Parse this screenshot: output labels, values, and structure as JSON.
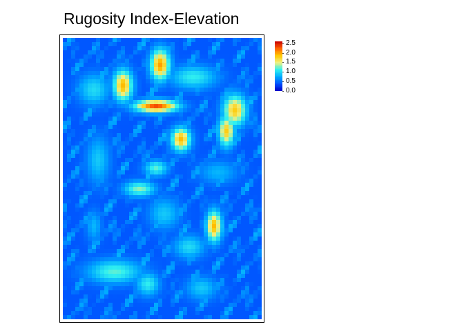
{
  "chart_data": {
    "type": "heatmap",
    "title": "Rugosity Index-Elevation",
    "xlabel": "",
    "ylabel": "",
    "value_range": [
      0.0,
      2.6
    ],
    "colorbar": {
      "position": "top-right",
      "ticks": [
        "2.5",
        "2.0",
        "1.5",
        "1.0",
        "0.5",
        "0.0"
      ],
      "tick_values": [
        2.5,
        2.0,
        1.5,
        1.0,
        0.5,
        0.0
      ],
      "colors": [
        "#0000c8",
        "#0050ff",
        "#00aaff",
        "#30f0f0",
        "#f0f080",
        "#ffc800",
        "#ff6000",
        "#c80000"
      ]
    },
    "grid_columns": 48,
    "grid_rows": 68,
    "base_value": 0.4,
    "hotspots": [
      {
        "col": 22,
        "row": 16,
        "rx": 5.5,
        "ry": 1.6,
        "value": 2.3
      },
      {
        "col": 23,
        "row": 6,
        "rx": 2.5,
        "ry": 4,
        "value": 2.0
      },
      {
        "col": 14,
        "row": 11,
        "rx": 2.5,
        "ry": 4,
        "value": 1.9
      },
      {
        "col": 28,
        "row": 24,
        "rx": 2.5,
        "ry": 3,
        "value": 1.9
      },
      {
        "col": 41,
        "row": 17,
        "rx": 3,
        "ry": 4,
        "value": 1.8
      },
      {
        "col": 39,
        "row": 22,
        "rx": 2,
        "ry": 4,
        "value": 1.8
      },
      {
        "col": 36,
        "row": 45,
        "rx": 2,
        "ry": 4,
        "value": 1.9
      },
      {
        "col": 18,
        "row": 36,
        "rx": 4,
        "ry": 2,
        "value": 1.3
      },
      {
        "col": 22,
        "row": 31,
        "rx": 3,
        "ry": 2,
        "value": 1.2
      },
      {
        "col": 12,
        "row": 56,
        "rx": 7,
        "ry": 3,
        "value": 1.2
      },
      {
        "col": 20,
        "row": 59,
        "rx": 3,
        "ry": 3,
        "value": 1.1
      },
      {
        "col": 30,
        "row": 50,
        "rx": 4,
        "ry": 3,
        "value": 1.0
      },
      {
        "col": 7,
        "row": 12,
        "rx": 4,
        "ry": 4,
        "value": 1.0
      },
      {
        "col": 31,
        "row": 9,
        "rx": 6,
        "ry": 3,
        "value": 1.1
      },
      {
        "col": 8,
        "row": 29,
        "rx": 3,
        "ry": 6,
        "value": 0.9
      },
      {
        "col": 37,
        "row": 32,
        "rx": 5,
        "ry": 3,
        "value": 0.8
      },
      {
        "col": 7,
        "row": 45,
        "rx": 2,
        "ry": 4,
        "value": 0.8
      },
      {
        "col": 33,
        "row": 60,
        "rx": 4,
        "ry": 3,
        "value": 0.9
      },
      {
        "col": 24,
        "row": 42,
        "rx": 4,
        "ry": 4,
        "value": 0.9
      }
    ]
  }
}
